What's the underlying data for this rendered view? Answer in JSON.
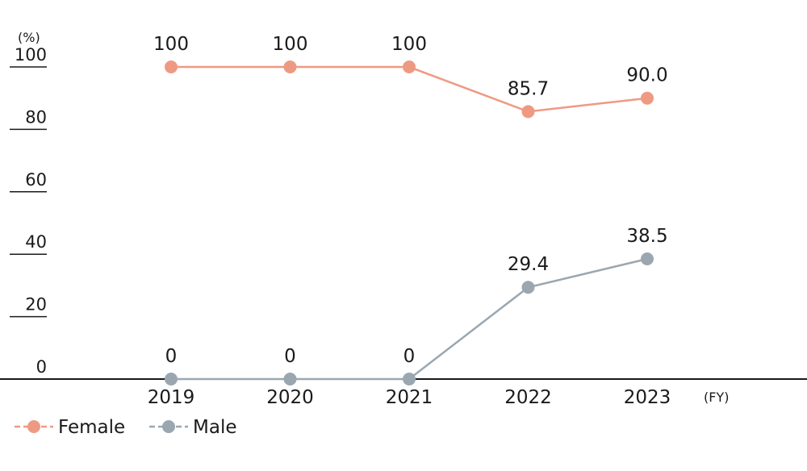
{
  "chart_data": {
    "type": "line",
    "x": [
      "2019",
      "2020",
      "2021",
      "2022",
      "2023"
    ],
    "series": [
      {
        "name": "Female",
        "values": [
          100,
          100,
          100,
          85.7,
          90.0
        ],
        "labels": [
          "100",
          "100",
          "100",
          "85.7",
          "90.0"
        ],
        "color": "#ee9a83"
      },
      {
        "name": "Male",
        "values": [
          0,
          0,
          0,
          29.4,
          38.5
        ],
        "labels": [
          "0",
          "0",
          "0",
          "29.4",
          "38.5"
        ],
        "color": "#9aa7b1"
      }
    ],
    "y_unit": "(%)",
    "x_unit": "(FY)",
    "ylim": [
      0,
      100
    ],
    "yticks": [
      "0",
      "20",
      "40",
      "60",
      "80",
      "100"
    ],
    "grid": false,
    "legend": "bottom-left"
  }
}
